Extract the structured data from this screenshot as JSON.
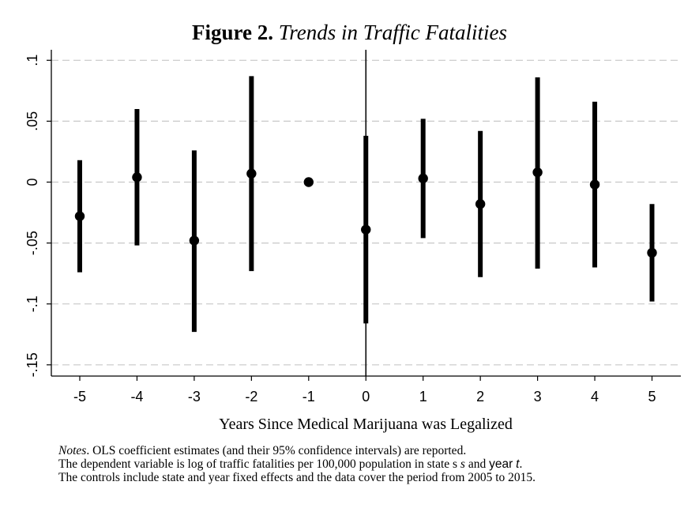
{
  "title": {
    "bold_part": "Figure 2.",
    "italic_part": "Trends in Traffic Fatalities"
  },
  "notes": {
    "label": "Notes",
    "line1_rest": ". OLS coefficient estimates (and their 95% confidence intervals) are reported.",
    "line2_a": "The dependent variable is log of traffic fatalities per 100,000 population in state s ",
    "line2_s": "s",
    "line2_b": " and ",
    "line2_year": "year",
    "line2_t": "t",
    "line2_end": ".",
    "line3": "The controls include state and year fixed effects and the data cover the period from 2005 to 2015."
  },
  "chart_data": {
    "type": "scatter",
    "title": "Figure 2. Trends in Traffic Fatalities",
    "xlabel": "Years Since Medical Marijuana was Legalized",
    "ylabel": "",
    "x": [
      -5,
      -4,
      -3,
      -2,
      -1,
      0,
      1,
      2,
      3,
      4,
      5
    ],
    "estimates": [
      -0.028,
      0.004,
      -0.048,
      0.007,
      0.0,
      -0.039,
      0.003,
      -0.018,
      0.008,
      -0.002,
      -0.058
    ],
    "ci_low": [
      -0.074,
      -0.052,
      -0.123,
      -0.073,
      null,
      -0.116,
      -0.046,
      -0.078,
      -0.071,
      -0.07,
      -0.098
    ],
    "ci_high": [
      0.018,
      0.06,
      0.026,
      0.087,
      null,
      0.038,
      0.052,
      0.042,
      0.086,
      0.066,
      -0.018
    ],
    "xticks": [
      "-5",
      "-4",
      "-3",
      "-2",
      "-1",
      "0",
      "1",
      "2",
      "3",
      "4",
      "5"
    ],
    "yticks": [
      {
        "value": 0.1,
        "label": ".1"
      },
      {
        "value": 0.05,
        "label": ".05"
      },
      {
        "value": 0.0,
        "label": "0"
      },
      {
        "value": -0.05,
        "label": "-.05"
      },
      {
        "value": -0.1,
        "label": "-.1"
      },
      {
        "value": -0.15,
        "label": "-.15"
      }
    ],
    "xlim": [
      -5.5,
      5.5
    ],
    "ylim": [
      -0.16,
      0.1
    ],
    "grid": "horizontal dashed",
    "reference_line_x": 0,
    "colors": {
      "marker": "#000000",
      "grid": "#c8c8c8",
      "axis": "#000000"
    }
  }
}
